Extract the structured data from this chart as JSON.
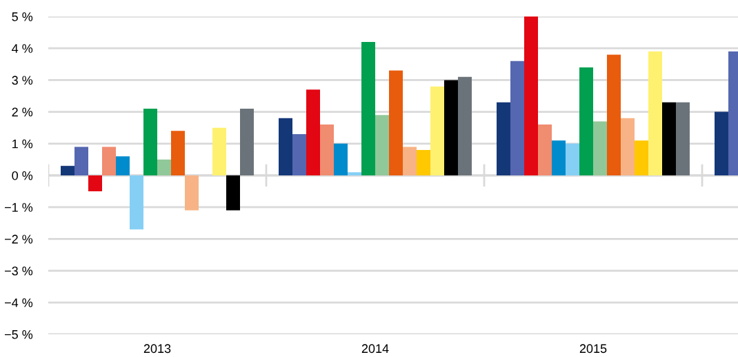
{
  "chart_data": {
    "type": "bar",
    "categories": [
      "2013",
      "2014",
      "2015",
      null
    ],
    "series": [
      {
        "color": "#143778",
        "values": [
          0.3,
          1.8,
          2.3,
          2.0
        ]
      },
      {
        "color": "#5567b0",
        "values": [
          0.9,
          1.3,
          3.6,
          3.9
        ]
      },
      {
        "color": "#e30613",
        "values": [
          -0.5,
          2.7,
          5.0,
          null
        ]
      },
      {
        "color": "#f08c70",
        "values": [
          0.9,
          1.6,
          1.6,
          null
        ]
      },
      {
        "color": "#008ccc",
        "values": [
          0.6,
          1.0,
          1.1,
          null
        ]
      },
      {
        "color": "#85cff5",
        "values": [
          -1.7,
          0.1,
          1.0,
          null
        ]
      },
      {
        "color": "#00a050",
        "values": [
          2.1,
          4.2,
          3.4,
          null
        ]
      },
      {
        "color": "#91c899",
        "values": [
          0.5,
          1.9,
          1.7,
          null
        ]
      },
      {
        "color": "#e85c0d",
        "values": [
          1.4,
          3.3,
          3.8,
          null
        ]
      },
      {
        "color": "#f7b386",
        "values": [
          -1.1,
          0.9,
          1.8,
          null
        ]
      },
      {
        "color": "#ffc800",
        "values": [
          0,
          0.8,
          1.1,
          null
        ]
      },
      {
        "color": "#fff170",
        "values": [
          1.5,
          2.8,
          3.9,
          null
        ]
      },
      {
        "color": "#000000",
        "values": [
          -1.1,
          3.0,
          2.3,
          null
        ]
      },
      {
        "color": "#6b737a",
        "values": [
          2.1,
          3.1,
          2.3,
          null
        ]
      }
    ],
    "ylim": [
      -5,
      5
    ],
    "yticks": [
      {
        "value": 5,
        "label": "5 %"
      },
      {
        "value": 4,
        "label": "4 %"
      },
      {
        "value": 3,
        "label": "3 %"
      },
      {
        "value": 2,
        "label": "2 %"
      },
      {
        "value": 1,
        "label": "1 %"
      },
      {
        "value": 0,
        "label": "0 %"
      },
      {
        "value": -1,
        "label": "−1 %"
      },
      {
        "value": -2,
        "label": "−2 %"
      },
      {
        "value": -3,
        "label": "−3 %"
      },
      {
        "value": -4,
        "label": "−4 %"
      },
      {
        "value": -5,
        "label": "−5 %"
      }
    ],
    "grid": "y"
  }
}
